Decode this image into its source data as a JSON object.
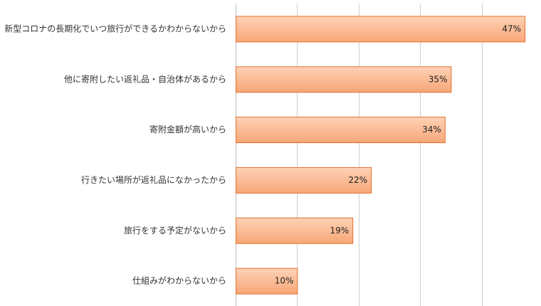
{
  "chart_data": {
    "type": "bar",
    "orientation": "horizontal",
    "categories": [
      "新型コロナの長期化でいつ旅行ができるかわからないから",
      "他に寄附したい返礼品・自治体があるから",
      "寄附金額が高いから",
      "行きたい場所が返礼品になかったから",
      "旅行をする予定がないから",
      "仕組みがわからないから"
    ],
    "values": [
      47,
      35,
      34,
      22,
      19,
      10
    ],
    "value_labels": [
      "47%",
      "35%",
      "34%",
      "22%",
      "19%",
      "10%"
    ],
    "xlim": [
      0,
      50
    ],
    "grid_step": 10,
    "grid": true,
    "legend": "none",
    "colors": {
      "bar_top": "#fdd2b6",
      "bar_bottom": "#f8a677",
      "bar_stroke": "#e2702e",
      "grid": "#d0d0d0",
      "axis": "#bdbdbd"
    }
  }
}
